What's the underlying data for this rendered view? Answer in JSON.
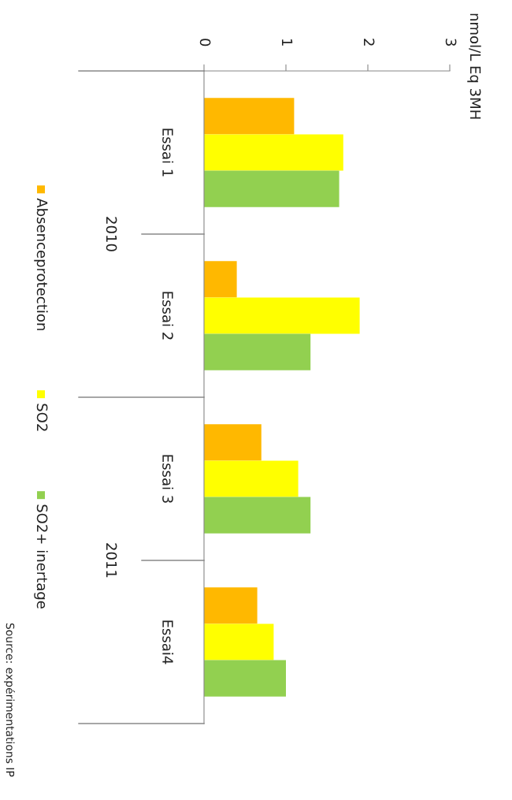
{
  "chart_data": {
    "type": "bar",
    "orientation": "horizontal",
    "categories": [
      "Essai 1",
      "Essai 2",
      "Essai 3",
      "Essai4"
    ],
    "series": [
      {
        "name": "Absenceprotection",
        "color": "#ffb800",
        "values": [
          1.1,
          0.4,
          0.7,
          0.65
        ]
      },
      {
        "name": "SO2",
        "color": "#ffff00",
        "values": [
          1.7,
          1.9,
          1.15,
          0.85
        ]
      },
      {
        "name": "SO2+ inertage",
        "color": "#92d050",
        "values": [
          1.65,
          1.3,
          1.3,
          1.0
        ]
      }
    ],
    "xlim": [
      0,
      3
    ],
    "xticks": [
      0,
      1,
      2,
      3
    ],
    "ylabel": "nmol/L Eq 3MH",
    "legend": "left",
    "annotations": [
      "2010",
      "2011",
      "Source: expérimentations IP"
    ]
  }
}
